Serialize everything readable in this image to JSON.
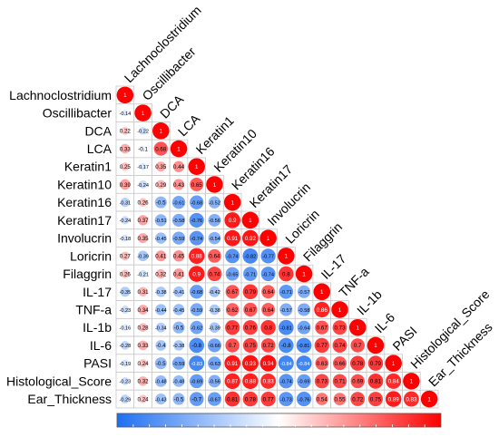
{
  "chart_data": {
    "type": "heatmap",
    "variables": [
      "Lachnoclostridium",
      "Oscillibacter",
      "DCA",
      "LCA",
      "Keratin1",
      "Keratin10",
      "Keratin16",
      "Keratin17",
      "Involucrin",
      "Loricrin",
      "Filaggrin",
      "IL-17",
      "TNF-a",
      "IL-1b",
      "IL-6",
      "PASI",
      "Histological_Score",
      "Ear_Thickness"
    ],
    "rows": [
      {
        "label": "Lachnoclostridium",
        "values": [
          1
        ]
      },
      {
        "label": "Oscillibacter",
        "values": [
          -0.14,
          1
        ]
      },
      {
        "label": "DCA",
        "values": [
          0.22,
          -0.22,
          1
        ]
      },
      {
        "label": "LCA",
        "values": [
          0.33,
          -0.1,
          0.68,
          1
        ]
      },
      {
        "label": "Keratin1",
        "values": [
          0.25,
          -0.17,
          0.35,
          0.44,
          1
        ]
      },
      {
        "label": "Keratin10",
        "values": [
          0.39,
          -0.24,
          0.29,
          0.43,
          0.65,
          1
        ]
      },
      {
        "label": "Keratin16",
        "values": [
          -0.31,
          0.26,
          -0.5,
          -0.61,
          -0.68,
          -0.52,
          1
        ]
      },
      {
        "label": "Keratin17",
        "values": [
          -0.24,
          0.37,
          -0.51,
          -0.58,
          -0.76,
          -0.56,
          0.9,
          1
        ]
      },
      {
        "label": "Involucrin",
        "values": [
          -0.18,
          0.35,
          -0.45,
          -0.59,
          -0.74,
          -0.54,
          0.91,
          0.92,
          1
        ]
      },
      {
        "label": "Loricrin",
        "values": [
          0.27,
          -0.39,
          0.41,
          0.45,
          0.88,
          0.64,
          -0.74,
          -0.82,
          -0.77,
          1
        ]
      },
      {
        "label": "Filaggrin",
        "values": [
          0.26,
          -0.21,
          0.32,
          0.41,
          0.9,
          0.74,
          -0.65,
          -0.71,
          -0.74,
          0.8,
          1
        ]
      },
      {
        "label": "IL-17",
        "values": [
          -0.35,
          0.31,
          -0.38,
          -0.41,
          -0.68,
          -0.42,
          0.67,
          0.79,
          0.64,
          -0.71,
          -0.57,
          1
        ]
      },
      {
        "label": "TNF-a",
        "values": [
          -0.23,
          0.34,
          -0.44,
          -0.45,
          -0.59,
          -0.38,
          0.62,
          0.67,
          0.64,
          -0.57,
          -0.58,
          0.86,
          1
        ]
      },
      {
        "label": "IL-1b",
        "values": [
          -0.16,
          0.28,
          -0.34,
          -0.5,
          -0.62,
          -0.39,
          0.77,
          0.76,
          0.8,
          -0.81,
          -0.64,
          0.67,
          0.73,
          1
        ]
      },
      {
        "label": "IL-6",
        "values": [
          -0.28,
          0.33,
          -0.4,
          -0.38,
          -0.8,
          -0.66,
          0.7,
          0.75,
          0.72,
          -0.8,
          -0.81,
          0.77,
          0.74,
          0.7,
          1
        ]
      },
      {
        "label": "PASI",
        "values": [
          -0.19,
          0.24,
          -0.5,
          -0.59,
          -0.83,
          -0.63,
          0.91,
          0.93,
          0.94,
          -0.84,
          -0.84,
          0.63,
          0.66,
          0.78,
          0.79,
          1
        ]
      },
      {
        "label": "Histological_Score",
        "values": [
          -0.23,
          0.32,
          -0.48,
          -0.48,
          -0.69,
          -0.56,
          0.87,
          0.88,
          0.83,
          -0.74,
          -0.69,
          0.73,
          0.71,
          0.69,
          0.81,
          0.84,
          1
        ]
      },
      {
        "label": "Ear_Thickness",
        "values": [
          -0.29,
          0.24,
          -0.43,
          -0.5,
          -0.7,
          -0.67,
          0.81,
          0.78,
          0.77,
          -0.73,
          -0.76,
          0.54,
          0.55,
          0.72,
          0.75,
          0.89,
          0.83,
          1
        ]
      }
    ],
    "color_scale": {
      "min": -1,
      "max": 1,
      "low_color": "#1e6ff2",
      "mid_color": "#ffffff",
      "high_color": "#ff0000"
    },
    "legend": "bottom colorbar",
    "grid": true
  }
}
